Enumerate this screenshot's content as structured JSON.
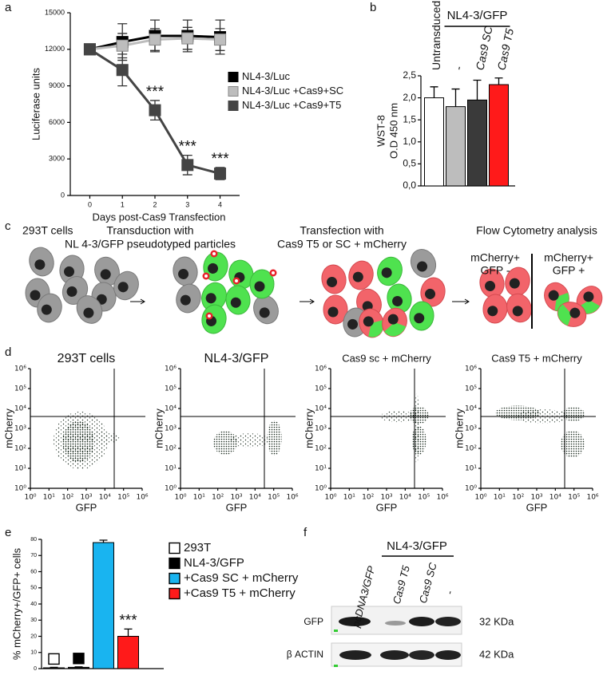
{
  "panel_labels": [
    "a",
    "b",
    "c",
    "d",
    "e",
    "f"
  ],
  "chart_data": [
    {
      "type": "line",
      "x": [
        0,
        1,
        2,
        3,
        4
      ],
      "xlim": [
        -0.6,
        4.6
      ],
      "xticks": [
        0,
        1,
        2,
        3,
        4
      ],
      "ylim": [
        0,
        15000
      ],
      "yticks": [
        0,
        3000,
        6000,
        9000,
        12000,
        15000
      ],
      "xlabel": "Days post-Cas9 Transfection",
      "ylabel": "Luciferase units",
      "legend": "center right",
      "series": [
        {
          "name": "NL4-3/Luc",
          "color": "#000000",
          "values": [
            12000,
            12600,
            13100,
            13100,
            13000
          ],
          "errors": [
            300,
            1500,
            1300,
            1300,
            1400
          ]
        },
        {
          "name": "NL4-3/Luc +Cas9+SC",
          "color": "#bdbdbd",
          "values": [
            12000,
            12300,
            12800,
            12900,
            12800
          ],
          "errors": [
            200,
            1000,
            900,
            900,
            900
          ]
        },
        {
          "name": "NL4-3/Luc +Cas9+T5",
          "color": "#444444",
          "values": [
            12000,
            10300,
            7000,
            2500,
            1800
          ],
          "errors": [
            300,
            1300,
            800,
            800,
            500
          ],
          "annotations": [
            null,
            null,
            "***",
            "***",
            "***"
          ]
        }
      ]
    },
    {
      "type": "bar",
      "categories": [
        "Untransduced",
        "-",
        "Cas9 SC",
        "Cas9 T5"
      ],
      "group_label": "NL4-3/GFP",
      "values": [
        2.0,
        1.8,
        1.95,
        2.3
      ],
      "errors": [
        0.25,
        0.4,
        0.45,
        0.15
      ],
      "colors": [
        "#ffffff",
        "#bdbdbd",
        "#3a3a3a",
        "#ff1a1a"
      ],
      "ylim": [
        0,
        2.5
      ],
      "yticks": [
        {
          "value": 0,
          "label": "0,0"
        },
        {
          "value": 0.5,
          "label": "0,5"
        },
        {
          "value": 1,
          "label": "1,0"
        },
        {
          "value": 1.5,
          "label": "1,5"
        },
        {
          "value": 2,
          "label": "2,0"
        },
        {
          "value": 2.5,
          "label": "2,5"
        }
      ],
      "ylabel": [
        "WST-8",
        "O.D 450 nm"
      ]
    },
    {
      "type": "bar",
      "categories": [
        "293T",
        "NL4-3/GFP",
        "+Cas9 SC + mCherry",
        "+Cas9 T5 + mCherry"
      ],
      "values": [
        0.5,
        0.8,
        78,
        20
      ],
      "errors": [
        0.3,
        0.3,
        1.5,
        4.5
      ],
      "colors": [
        "#ffffff",
        "#000000",
        "#19b4f0",
        "#ff1a1a"
      ],
      "ylim": [
        0,
        80
      ],
      "yticks": [
        0,
        10,
        20,
        30,
        40,
        50,
        60,
        70,
        80
      ],
      "ylabel": "% mCherry+/GFP+ cells",
      "legend": "upper right",
      "annotations": [
        null,
        null,
        null,
        "***"
      ]
    }
  ],
  "schematic": {
    "steps": [
      [
        "293T cells"
      ],
      [
        "Transduction with",
        "NL 4-3/GFP pseudotyped particles"
      ],
      [
        "Transfection with",
        "Cas9 T5 or SC + mCherry"
      ],
      [
        "Flow Cytometry analysis"
      ]
    ],
    "gates": [
      [
        "mCherry+",
        "GFP -"
      ],
      [
        "mCherry+",
        "GFP +"
      ]
    ]
  },
  "flow": {
    "titles": [
      "293T cells",
      "NL4-3/GFP",
      "Cas9 sc + mCherry",
      "Cas9 T5 + mCherry"
    ],
    "xlabel": "GFP",
    "ylabel": "mCherry",
    "log": true,
    "xlim": [
      1,
      1000000
    ],
    "ylim": [
      1,
      1000000
    ],
    "xticks": [
      {
        "value": 1,
        "label": "10⁰"
      },
      {
        "value": 10,
        "label": "10¹"
      },
      {
        "value": 100,
        "label": "10²"
      },
      {
        "value": 1000,
        "label": "10³"
      },
      {
        "value": 10000,
        "label": "10⁴"
      },
      {
        "value": 100000,
        "label": "10⁵"
      },
      {
        "value": 1000000,
        "label": "10⁶"
      }
    ],
    "yticks": [
      {
        "value": 1,
        "label": "10⁰"
      },
      {
        "value": 10,
        "label": "10¹"
      },
      {
        "value": 100,
        "label": "10²"
      },
      {
        "value": 1000,
        "label": "10³"
      },
      {
        "value": 10000,
        "label": "10⁴"
      },
      {
        "value": 100000,
        "label": "10⁵"
      },
      {
        "value": 1000000,
        "label": "10⁶"
      }
    ]
  },
  "blot": {
    "group_label": "NL4-3/GFP",
    "lanes": [
      "pcDNA3/GFP",
      "Cas9 T5",
      "Cas9 SC",
      "-"
    ],
    "rows": [
      {
        "label": "GFP",
        "size": "32 KDa"
      },
      {
        "label": "β ACTIN",
        "size": "42 KDa"
      }
    ]
  }
}
